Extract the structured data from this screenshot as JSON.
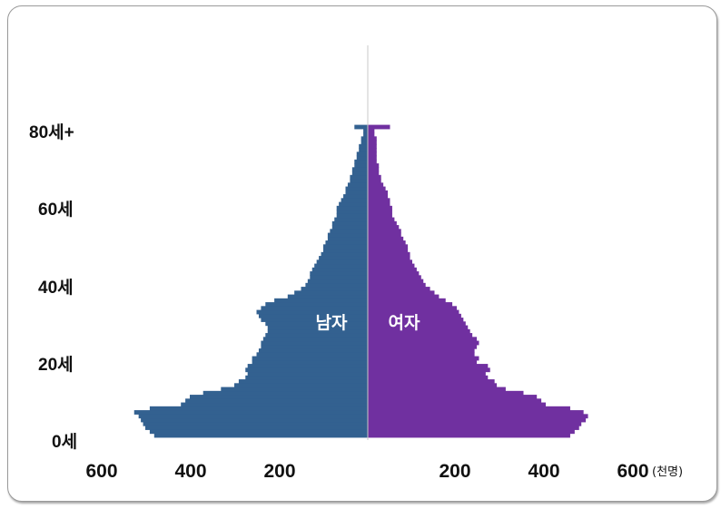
{
  "chart_data": {
    "type": "bar",
    "orientation": "horizontal",
    "title": "",
    "x_unit": "(천명)",
    "x_tick_labels_left": [
      "600",
      "400",
      "200"
    ],
    "x_tick_labels_right": [
      "200",
      "400",
      "600"
    ],
    "y_tick_labels": [
      "80세+",
      "60세",
      "40세",
      "20세",
      "0세"
    ],
    "xlim": [
      -600,
      600
    ],
    "ylim_age": [
      0,
      80
    ],
    "series": [
      {
        "name": "남자",
        "color": "#336190",
        "ages": [
          0,
          1,
          2,
          3,
          4,
          5,
          6,
          7,
          8,
          9,
          10,
          11,
          12,
          13,
          14,
          15,
          16,
          17,
          18,
          19,
          20,
          21,
          22,
          23,
          24,
          25,
          26,
          27,
          28,
          29,
          30,
          31,
          32,
          33,
          34,
          35,
          36,
          37,
          38,
          39,
          40,
          41,
          42,
          43,
          44,
          45,
          46,
          47,
          48,
          49,
          50,
          51,
          52,
          53,
          54,
          55,
          56,
          57,
          58,
          59,
          60,
          61,
          62,
          63,
          64,
          65,
          66,
          67,
          68,
          69,
          70,
          71,
          72,
          73,
          74,
          75,
          76,
          77,
          78,
          79,
          80
        ],
        "values": [
          480,
          490,
          500,
          505,
          510,
          515,
          525,
          490,
          420,
          410,
          400,
          370,
          330,
          300,
          290,
          275,
          270,
          275,
          270,
          260,
          260,
          250,
          245,
          240,
          240,
          235,
          230,
          225,
          225,
          230,
          240,
          245,
          250,
          240,
          230,
          210,
          180,
          165,
          150,
          140,
          135,
          130,
          130,
          125,
          120,
          115,
          110,
          105,
          100,
          100,
          95,
          90,
          90,
          85,
          80,
          80,
          75,
          70,
          70,
          70,
          65,
          60,
          55,
          50,
          50,
          45,
          40,
          40,
          35,
          35,
          30,
          30,
          25,
          25,
          20,
          20,
          15,
          15,
          10,
          10,
          30
        ]
      },
      {
        "name": "여자",
        "color": "#7030A0",
        "ages": [
          0,
          1,
          2,
          3,
          4,
          5,
          6,
          7,
          8,
          9,
          10,
          11,
          12,
          13,
          14,
          15,
          16,
          17,
          18,
          19,
          20,
          21,
          22,
          23,
          24,
          25,
          26,
          27,
          28,
          29,
          30,
          31,
          32,
          33,
          34,
          35,
          36,
          37,
          38,
          39,
          40,
          41,
          42,
          43,
          44,
          45,
          46,
          47,
          48,
          49,
          50,
          51,
          52,
          53,
          54,
          55,
          56,
          57,
          58,
          59,
          60,
          61,
          62,
          63,
          64,
          65,
          66,
          67,
          68,
          69,
          70,
          71,
          72,
          73,
          74,
          75,
          76,
          77,
          78,
          79,
          80
        ],
        "values": [
          455,
          465,
          475,
          480,
          490,
          495,
          485,
          455,
          400,
          390,
          380,
          350,
          310,
          290,
          285,
          270,
          265,
          275,
          270,
          245,
          250,
          240,
          240,
          245,
          250,
          245,
          235,
          230,
          225,
          220,
          215,
          210,
          205,
          200,
          190,
          175,
          160,
          150,
          140,
          130,
          125,
          120,
          115,
          110,
          105,
          100,
          95,
          95,
          90,
          90,
          85,
          80,
          75,
          75,
          70,
          65,
          60,
          55,
          55,
          55,
          50,
          50,
          45,
          45,
          40,
          35,
          30,
          30,
          25,
          25,
          25,
          20,
          20,
          20,
          20,
          20,
          20,
          20,
          15,
          15,
          50
        ]
      }
    ]
  }
}
